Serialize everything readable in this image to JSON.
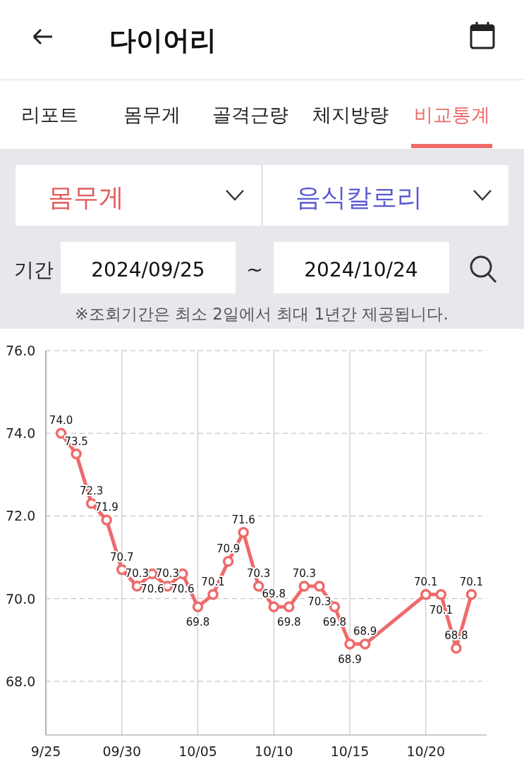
{
  "chart_data": {
    "type": "line",
    "title": "다이어리",
    "annotations": [
      "리포트",
      "몸무게",
      "골격근량",
      "체지방량",
      "비교통계",
      "몸무게",
      "음식칼로리",
      "기간",
      "2024/09/25",
      "~",
      "2024/10/24",
      "※조회기간은 최소 2일에서 최대 1년간 제공됩니다."
    ],
    "x": [
      "2024-09-26",
      "2024-09-27",
      "2024-09-28",
      "2024-09-29",
      "2024-09-30",
      "2024-10-01",
      "2024-10-02",
      "2024-10-03",
      "2024-10-04",
      "2024-10-05",
      "2024-10-06",
      "2024-10-07",
      "2024-10-08",
      "2024-10-09",
      "2024-10-10",
      "2024-10-11",
      "2024-10-12",
      "2024-10-13",
      "2024-10-14",
      "2024-10-15",
      "2024-10-16",
      "2024-10-20",
      "2024-10-21",
      "2024-10-22",
      "2024-10-23"
    ],
    "series": [
      {
        "color": "#ee6b6b",
        "values": [
          74.0,
          73.5,
          72.3,
          71.9,
          70.7,
          70.3,
          70.6,
          70.3,
          70.6,
          69.8,
          70.1,
          70.9,
          71.6,
          70.3,
          69.8,
          69.8,
          70.3,
          70.3,
          69.8,
          68.9,
          68.9,
          70.1,
          70.1,
          68.8,
          70.1
        ],
        "value_labels": [
          "74.0",
          "73.5",
          "72.3",
          "71.9",
          "70.7",
          "70.3",
          "70.6",
          "70.3",
          "70.6",
          "69.8",
          "70.1",
          "70.9",
          "71.6",
          "70.3",
          "69.8",
          "69.8",
          "70.3",
          "70.3",
          "69.8",
          "68.9",
          "68.9",
          "70.1",
          "70.1",
          "68.8",
          "70.1"
        ]
      }
    ],
    "xlim": [
      "2024-09-25",
      "2024-10-24"
    ],
    "xticks": [
      {
        "value": "2024-09-25",
        "label": "9/25"
      },
      {
        "value": "2024-09-30",
        "label": "09/30"
      },
      {
        "value": "2024-10-05",
        "label": "10/05"
      },
      {
        "value": "2024-10-10",
        "label": "10/10"
      },
      {
        "value": "2024-10-15",
        "label": "10/15"
      },
      {
        "value": "2024-10-20",
        "label": "10/20"
      }
    ],
    "ylim": [
      66.7,
      76.0
    ],
    "yticks": [
      {
        "value": 68,
        "label": "68.0"
      },
      {
        "value": 70,
        "label": "70.0"
      },
      {
        "value": 72,
        "label": "72.0"
      },
      {
        "value": 74,
        "label": "74.0"
      },
      {
        "value": 76,
        "label": "76.0"
      }
    ],
    "grid": true,
    "marker": "circle",
    "line_style": "solid"
  }
}
